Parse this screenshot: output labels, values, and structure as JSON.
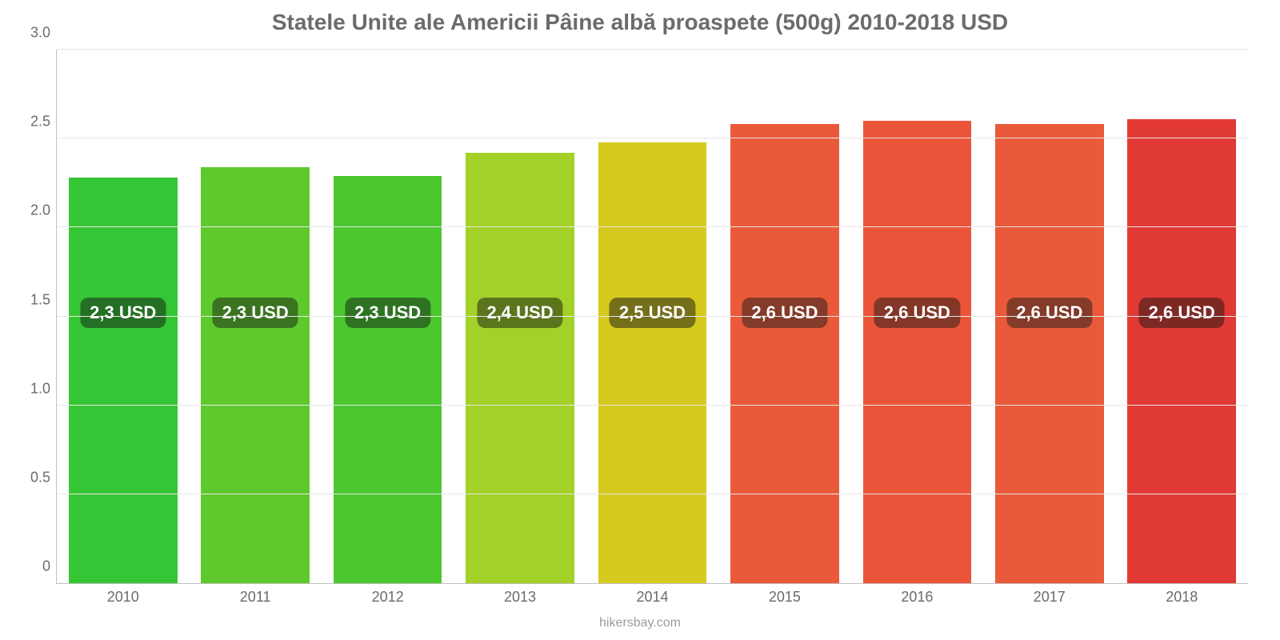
{
  "chart": {
    "type": "bar",
    "title": "Statele Unite ale Americii Pâine albă proaspete (500g) 2010-2018 USD",
    "title_fontsize": 28,
    "title_color": "#6b6b6b",
    "background_color": "#ffffff",
    "grid_color": "#e6e6e6",
    "axis_color": "#bfbfbf",
    "tick_font_color": "#6b6b6b",
    "tick_fontsize": 18,
    "categories": [
      "2010",
      "2011",
      "2012",
      "2013",
      "2014",
      "2015",
      "2016",
      "2017",
      "2018"
    ],
    "values": [
      2.28,
      2.34,
      2.29,
      2.42,
      2.48,
      2.58,
      2.6,
      2.58,
      2.61
    ],
    "value_labels": [
      "2,3 USD",
      "2,3 USD",
      "2,3 USD",
      "2,4 USD",
      "2,5 USD",
      "2,6 USD",
      "2,6 USD",
      "2,6 USD",
      "2,6 USD"
    ],
    "bar_colors": [
      "#34c634",
      "#5ec92c",
      "#4cc82f",
      "#a3d128",
      "#d6ca1f",
      "#ea5a3a",
      "#ea5438",
      "#ea5a3a",
      "#e13a35"
    ],
    "badge_bg_colors": [
      "#246f24",
      "#3a7420",
      "#2f7322",
      "#5b751d",
      "#746f19",
      "#843b29",
      "#843727",
      "#843b29",
      "#7e2824"
    ],
    "badge_text_color": "#ffffff",
    "badge_fontsize": 22,
    "badge_value_y": 1.35,
    "ylim": [
      0,
      3.0
    ],
    "yticks": [
      0,
      0.5,
      1.0,
      1.5,
      2.0,
      2.5,
      3.0
    ],
    "ytick_labels": [
      "0",
      "0.5",
      "1.0",
      "1.5",
      "2.0",
      "2.5",
      "3.0"
    ],
    "bar_width": 0.82,
    "footer": "hikersbay.com",
    "footer_fontsize": 16,
    "footer_color": "#9b9b9b"
  }
}
